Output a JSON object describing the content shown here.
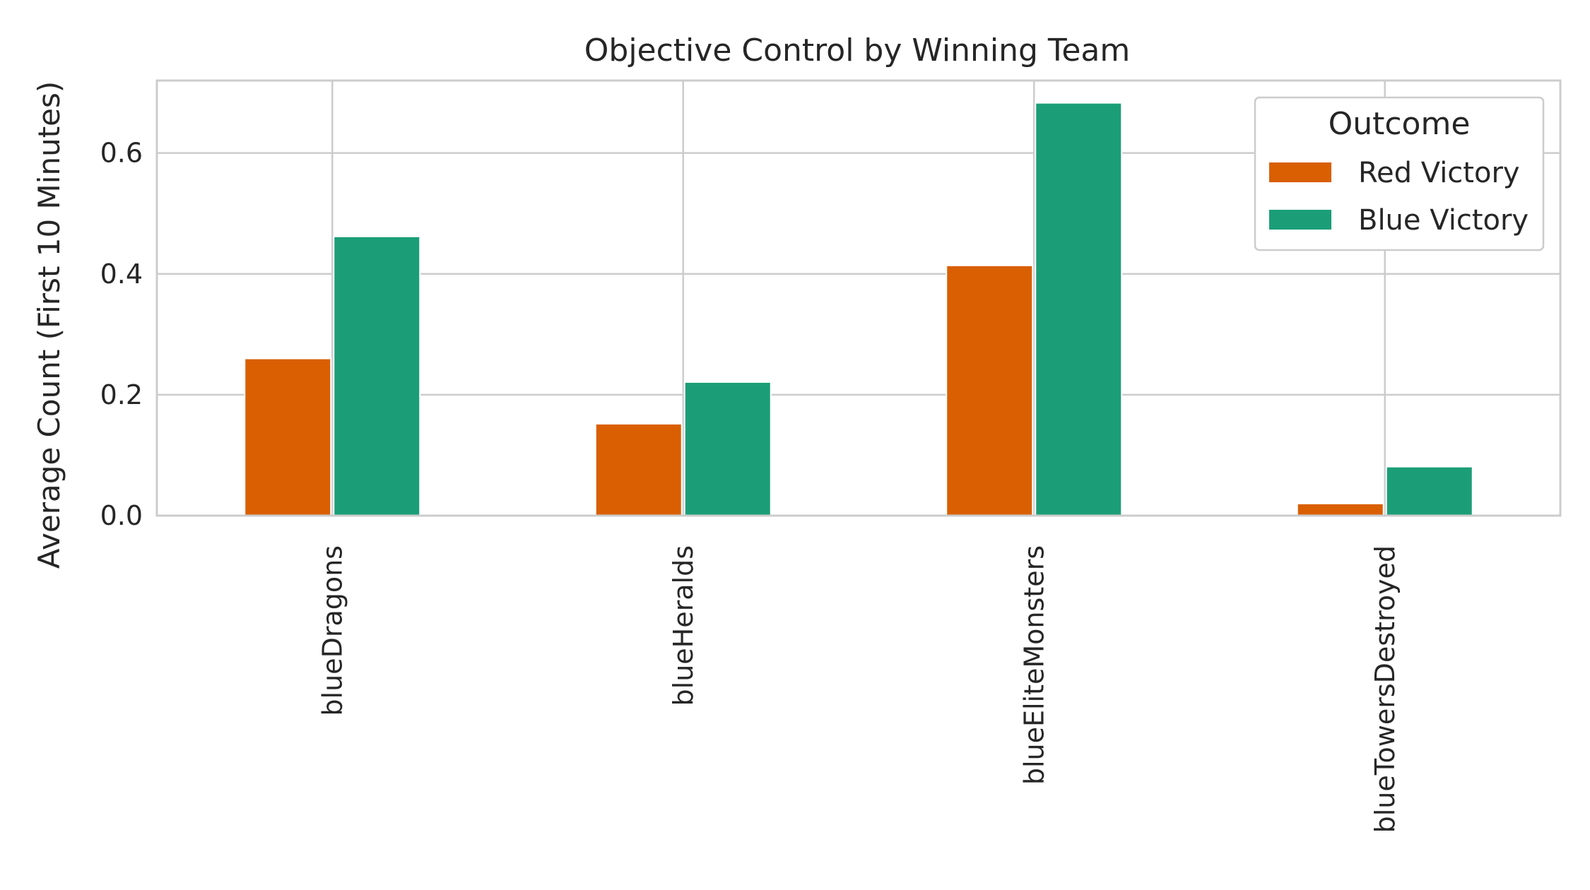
{
  "chart_data": {
    "type": "bar",
    "title": "Objective Control by Winning Team",
    "xlabel": "",
    "ylabel": "Average Count (First 10 Minutes)",
    "categories": [
      "blueDragons",
      "blueHeralds",
      "blueEliteMonsters",
      "blueTowersDestroyed"
    ],
    "series": [
      {
        "name": "Red Victory",
        "color": "#d95f02",
        "values": [
          0.26,
          0.152,
          0.414,
          0.02
        ]
      },
      {
        "name": "Blue Victory",
        "color": "#1b9e77",
        "values": [
          0.462,
          0.221,
          0.683,
          0.081
        ]
      }
    ],
    "ylim": [
      0,
      0.72
    ],
    "yticks": [
      0.0,
      0.2,
      0.4,
      0.6
    ],
    "ytick_labels": [
      "0.0",
      "0.2",
      "0.4",
      "0.6"
    ],
    "grid": true,
    "legend": {
      "title": "Outcome",
      "position": "top-right"
    }
  }
}
